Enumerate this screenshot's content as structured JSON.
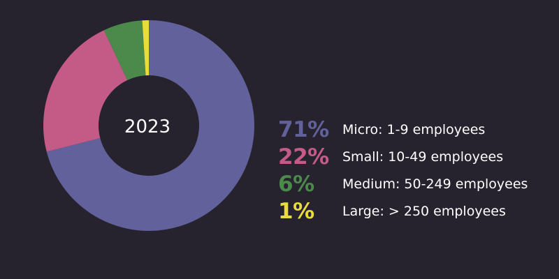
{
  "chart_data": {
    "type": "pie",
    "donut": true,
    "center_label": "2023",
    "slices": [
      {
        "label": "Micro: 1-9 employees",
        "percent_label": "71%",
        "value": 71,
        "color": "#62619b"
      },
      {
        "label": "Small: 10-49 employees",
        "percent_label": "22%",
        "value": 22,
        "color": "#c45b87"
      },
      {
        "label": "Medium: 50-249 employees",
        "percent_label": "6%",
        "value": 6,
        "color": "#4c8a4b"
      },
      {
        "label": "Large: > 250 employees",
        "percent_label": "1%",
        "value": 1,
        "color": "#e7dc3c"
      }
    ],
    "legend_position": "right"
  },
  "colors": {
    "background": "#26232f",
    "text": "#ffffff"
  }
}
